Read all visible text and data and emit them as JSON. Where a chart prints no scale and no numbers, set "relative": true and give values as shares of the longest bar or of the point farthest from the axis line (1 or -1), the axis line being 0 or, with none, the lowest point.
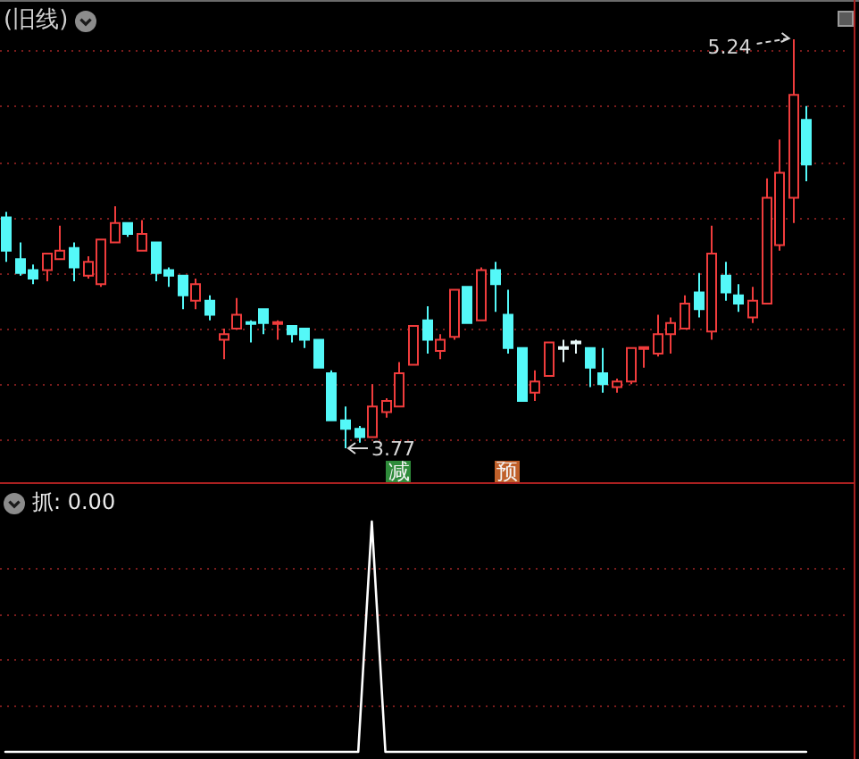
{
  "chart_data": [
    {
      "type": "candlestick",
      "title": "(旧线)",
      "categories": [
        null,
        null,
        null,
        null,
        null,
        null,
        null,
        null,
        null,
        null,
        null,
        null,
        null,
        null,
        null,
        null,
        null,
        null,
        null,
        null,
        null,
        null,
        null,
        null,
        null,
        null,
        null,
        null,
        null,
        "减",
        null,
        null,
        null,
        null,
        null,
        null,
        null,
        "预",
        null,
        null,
        null,
        null,
        null,
        null,
        null,
        null,
        null,
        null,
        null,
        null,
        null,
        null,
        null,
        null,
        null,
        null,
        null,
        null,
        null,
        null
      ],
      "ohlc": [
        [
          4.6,
          4.62,
          4.44,
          4.48
        ],
        [
          4.45,
          4.51,
          4.39,
          4.4
        ],
        [
          4.41,
          4.43,
          4.36,
          4.38
        ],
        [
          4.41,
          4.47,
          4.37,
          4.47
        ],
        [
          4.45,
          4.57,
          4.45,
          4.48
        ],
        [
          4.49,
          4.51,
          4.37,
          4.42
        ],
        [
          4.39,
          4.46,
          4.38,
          4.44
        ],
        [
          4.36,
          4.52,
          4.35,
          4.52
        ],
        [
          4.51,
          4.64,
          4.51,
          4.58
        ],
        [
          4.58,
          4.58,
          4.53,
          4.54
        ],
        [
          4.48,
          4.59,
          4.48,
          4.54
        ],
        [
          4.51,
          4.51,
          4.37,
          4.4
        ],
        [
          4.41,
          4.42,
          4.35,
          4.39
        ],
        [
          4.39,
          4.39,
          4.27,
          4.32
        ],
        [
          4.3,
          4.38,
          4.27,
          4.36
        ],
        [
          4.3,
          4.32,
          4.23,
          4.25
        ],
        [
          4.16,
          4.2,
          4.09,
          4.18
        ],
        [
          4.2,
          4.31,
          4.2,
          4.25
        ],
        [
          4.22,
          4.23,
          4.15,
          4.22
        ],
        [
          4.27,
          4.27,
          4.18,
          4.22
        ],
        [
          4.22,
          4.23,
          4.16,
          4.22
        ],
        [
          4.21,
          4.21,
          4.15,
          4.18
        ],
        [
          4.2,
          4.2,
          4.13,
          4.16
        ],
        [
          4.16,
          4.16,
          4.06,
          4.06
        ],
        [
          4.04,
          4.05,
          3.87,
          3.87
        ],
        [
          3.87,
          3.92,
          3.77,
          3.84
        ],
        [
          3.84,
          3.85,
          3.79,
          3.81
        ],
        [
          3.81,
          4.0,
          3.81,
          3.92
        ],
        [
          3.9,
          3.95,
          3.88,
          3.94
        ],
        [
          3.92,
          4.08,
          3.92,
          4.04
        ],
        [
          4.07,
          4.21,
          4.07,
          4.21
        ],
        [
          4.23,
          4.28,
          4.11,
          4.16
        ],
        [
          4.12,
          4.18,
          4.09,
          4.16
        ],
        [
          4.17,
          4.34,
          4.16,
          4.34
        ],
        [
          4.35,
          4.35,
          4.22,
          4.22
        ],
        [
          4.23,
          4.42,
          4.23,
          4.41
        ],
        [
          4.41,
          4.44,
          4.26,
          4.36
        ],
        [
          4.25,
          4.34,
          4.11,
          4.13
        ],
        [
          4.13,
          4.13,
          3.94,
          3.94
        ],
        [
          3.97,
          4.05,
          3.94,
          4.01
        ],
        [
          4.03,
          4.15,
          4.03,
          4.15
        ],
        [
          4.13,
          4.16,
          4.08,
          4.13
        ],
        [
          4.15,
          4.16,
          4.11,
          4.15
        ],
        [
          4.13,
          4.13,
          3.99,
          4.06
        ],
        [
          4.04,
          4.13,
          3.97,
          4.0
        ],
        [
          3.99,
          4.02,
          3.97,
          4.01
        ],
        [
          4.01,
          4.13,
          4.0,
          4.13
        ],
        [
          4.13,
          4.13,
          4.06,
          4.13
        ],
        [
          4.11,
          4.25,
          4.1,
          4.18
        ],
        [
          4.18,
          4.24,
          4.11,
          4.22
        ],
        [
          4.2,
          4.32,
          4.2,
          4.29
        ],
        [
          4.33,
          4.4,
          4.24,
          4.27
        ],
        [
          4.19,
          4.57,
          4.16,
          4.47
        ],
        [
          4.39,
          4.44,
          4.3,
          4.33
        ],
        [
          4.32,
          4.36,
          4.26,
          4.29
        ],
        [
          4.24,
          4.35,
          4.22,
          4.3
        ],
        [
          4.29,
          4.74,
          4.29,
          4.67
        ],
        [
          4.5,
          4.88,
          4.48,
          4.76
        ],
        [
          4.67,
          5.24,
          4.58,
          5.04
        ],
        [
          4.95,
          5.0,
          4.73,
          4.79
        ]
      ],
      "colors": [
        "#54f8f8",
        "#54f8f8",
        "#54f8f8",
        "#f03c3c",
        "#f03c3c",
        "#54f8f8",
        "#f03c3c",
        "#f03c3c",
        "#f03c3c",
        "#54f8f8",
        "#f03c3c",
        "#54f8f8",
        "#54f8f8",
        "#54f8f8",
        "#f03c3c",
        "#54f8f8",
        "#f03c3c",
        "#f03c3c",
        "#54f8f8",
        "#54f8f8",
        "#f03c3c",
        "#54f8f8",
        "#54f8f8",
        "#54f8f8",
        "#54f8f8",
        "#54f8f8",
        "#54f8f8",
        "#f03c3c",
        "#f03c3c",
        "#f03c3c",
        "#f03c3c",
        "#54f8f8",
        "#f03c3c",
        "#f03c3c",
        "#54f8f8",
        "#f03c3c",
        "#54f8f8",
        "#54f8f8",
        "#54f8f8",
        "#f03c3c",
        "#f03c3c",
        "#e8f8f8",
        "#e8f8f8",
        "#54f8f8",
        "#54f8f8",
        "#f03c3c",
        "#f03c3c",
        "#f03c3c",
        "#f03c3c",
        "#f03c3c",
        "#f03c3c",
        "#54f8f8",
        "#f03c3c",
        "#54f8f8",
        "#54f8f8",
        "#f03c3c",
        "#f03c3c",
        "#f03c3c",
        "#f03c3c",
        "#54f8f8"
      ],
      "annotations": [
        "5.24",
        "3.77"
      ],
      "yticks": [
        {
          "value": 3.8,
          "label": null
        },
        {
          "value": 4.0,
          "label": null
        },
        {
          "value": 4.2,
          "label": null
        },
        {
          "value": 4.4,
          "label": null
        },
        {
          "value": 4.6,
          "label": null
        },
        {
          "value": 4.8,
          "label": null
        },
        {
          "value": 5.0,
          "label": null
        },
        {
          "value": 5.2,
          "label": null
        }
      ],
      "grid": "y",
      "tick_labels": "x"
    },
    {
      "type": "line",
      "title": "抓: 0.00",
      "categories": [
        null,
        null,
        null,
        null,
        null,
        null,
        null,
        null,
        null,
        null,
        null,
        null,
        null,
        null,
        null,
        null,
        null,
        null,
        null,
        null,
        null,
        null,
        null,
        null,
        null,
        null,
        null,
        null,
        null,
        null,
        null,
        null,
        null,
        null,
        null,
        null,
        null,
        null,
        null,
        null,
        null,
        null,
        null,
        null,
        null,
        null,
        null,
        null,
        null,
        null,
        null,
        null,
        null,
        null,
        null,
        null,
        null,
        null,
        null,
        null
      ],
      "values": [
        0,
        0,
        0,
        0,
        0,
        0,
        0,
        0,
        0,
        0,
        0,
        0,
        0,
        0,
        0,
        0,
        0,
        0,
        0,
        0,
        0,
        0,
        0,
        0,
        0,
        0,
        0,
        1,
        0,
        0,
        0,
        0,
        0,
        0,
        0,
        0,
        0,
        0,
        0,
        0,
        0,
        0,
        0,
        0,
        0,
        0,
        0,
        0,
        0,
        0,
        0,
        0,
        0,
        0,
        0,
        0,
        0,
        0,
        0,
        0
      ],
      "color": "#ffffff",
      "relative": true,
      "tick_labels": false,
      "ref_lines": [
        {
          "axis": "y",
          "value": 0.2,
          "color": "#7a1c1c",
          "line_style": "dotted"
        },
        {
          "axis": "y",
          "value": 0.4,
          "color": "#7a1c1c",
          "line_style": "dotted"
        },
        {
          "axis": "y",
          "value": 0.6,
          "color": "#7a1c1c",
          "line_style": "dotted"
        },
        {
          "axis": "y",
          "value": 0.8,
          "color": "#7a1c1c",
          "line_style": "dotted"
        }
      ]
    }
  ]
}
